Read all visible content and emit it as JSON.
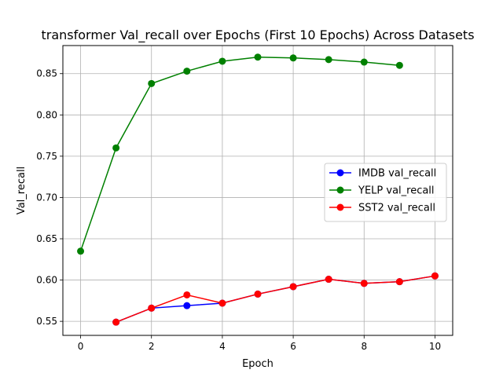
{
  "chart_data": {
    "type": "line",
    "title": "transformer Val_recall over Epochs (First 10 Epochs) Across Datasets",
    "xlabel": "Epoch",
    "ylabel": "Val_recall",
    "xlim": [
      -0.5,
      10.5
    ],
    "ylim": [
      0.533,
      0.884
    ],
    "xticks": [
      0,
      2,
      4,
      6,
      8,
      10
    ],
    "yticks": [
      0.55,
      0.6,
      0.65,
      0.7,
      0.75,
      0.8,
      0.85
    ],
    "xtick_labels": [
      "0",
      "2",
      "4",
      "6",
      "8",
      "10"
    ],
    "ytick_labels": [
      "0.55",
      "0.60",
      "0.65",
      "0.70",
      "0.75",
      "0.80",
      "0.85"
    ],
    "grid": true,
    "legend_position": "center-right",
    "series": [
      {
        "name": "IMDB val_recall",
        "color": "#0000ff",
        "x": [
          1,
          2,
          3,
          4,
          5,
          6,
          7,
          8,
          9,
          10
        ],
        "y": [
          0.549,
          0.566,
          0.569,
          0.572,
          0.583,
          0.592,
          0.601,
          0.596,
          0.598,
          0.605
        ]
      },
      {
        "name": "YELP val_recall",
        "color": "#008000",
        "x": [
          0,
          1,
          2,
          3,
          4,
          5,
          6,
          7,
          8,
          9
        ],
        "y": [
          0.635,
          0.76,
          0.838,
          0.853,
          0.865,
          0.87,
          0.869,
          0.867,
          0.864,
          0.86
        ]
      },
      {
        "name": "SST2 val_recall",
        "color": "#ff0000",
        "x": [
          1,
          2,
          3,
          4,
          5,
          6,
          7,
          8,
          9,
          10
        ],
        "y": [
          0.549,
          0.566,
          0.582,
          0.572,
          0.583,
          0.592,
          0.601,
          0.596,
          0.598,
          0.605
        ]
      }
    ]
  }
}
